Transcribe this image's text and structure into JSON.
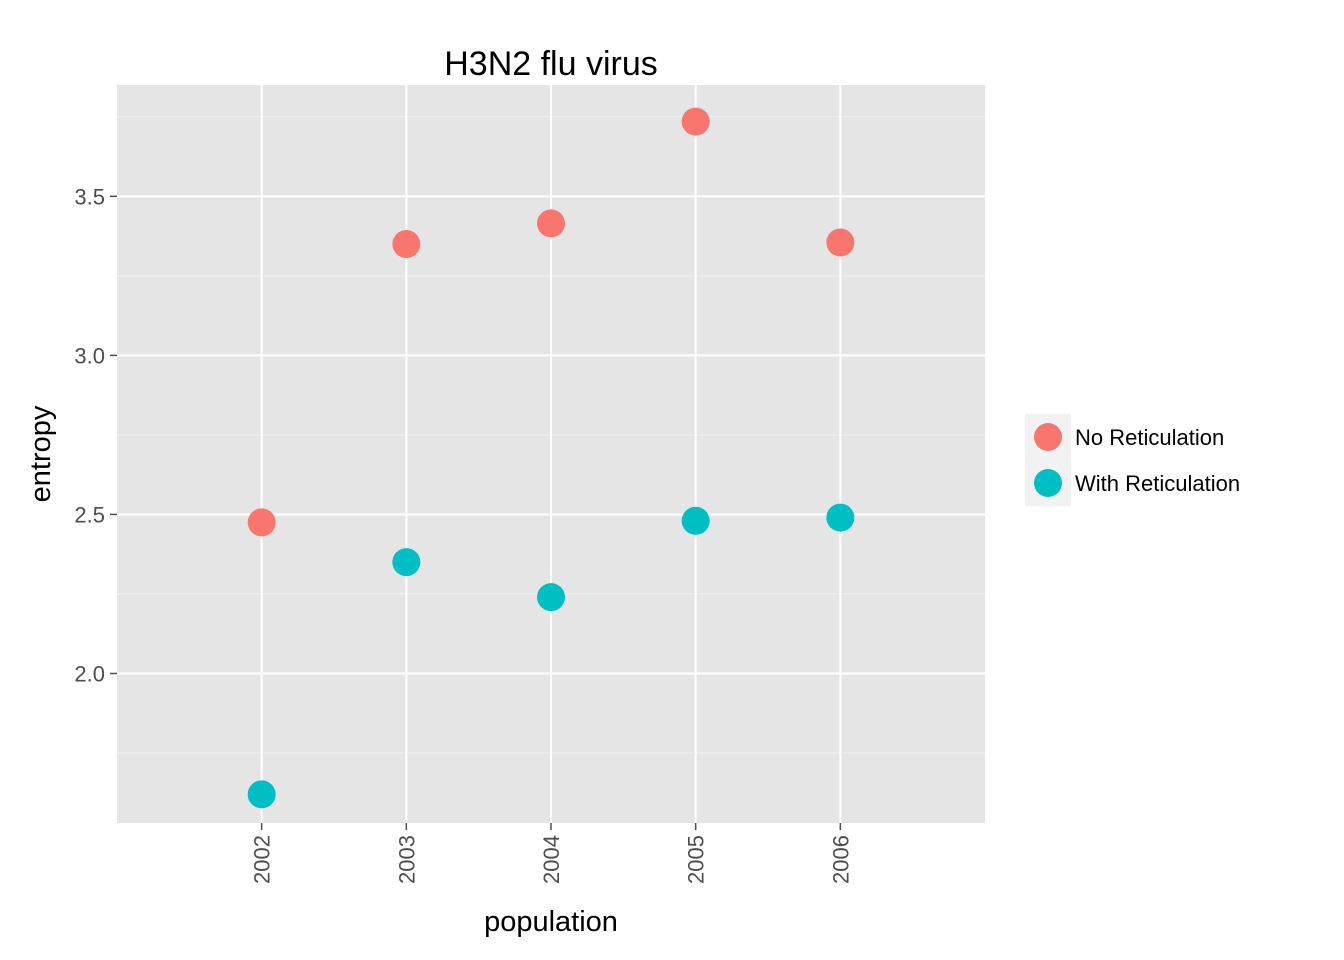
{
  "chart_data": {
    "type": "scatter",
    "title": "H3N2 flu virus",
    "xlabel": "population",
    "ylabel": "entropy",
    "categories": [
      "2002",
      "2003",
      "2004",
      "2005",
      "2006"
    ],
    "y_ticks": [
      "2.0",
      "2.5",
      "3.0",
      "3.5"
    ],
    "ylim": [
      1.53,
      3.85
    ],
    "grid": true,
    "legend_position": "right",
    "series": [
      {
        "name": "No Reticulation",
        "color": "#F8766D",
        "values": [
          2.475,
          3.35,
          3.415,
          3.735,
          3.355
        ]
      },
      {
        "name": "With Reticulation",
        "color": "#00BFC4",
        "values": [
          1.62,
          2.35,
          2.24,
          2.48,
          2.49
        ]
      }
    ]
  }
}
